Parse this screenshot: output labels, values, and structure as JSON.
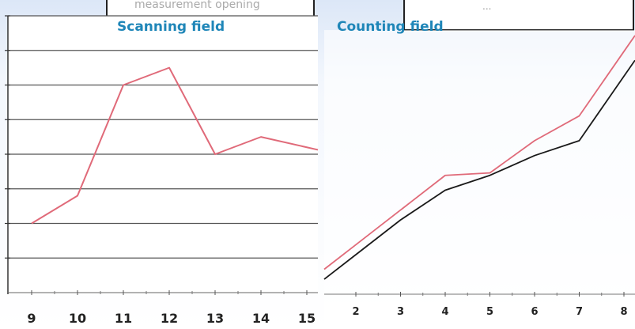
{
  "labels": {
    "left": "Scanning field",
    "right": "Counting field"
  },
  "top_fragments": {
    "left": "measurement opening",
    "right": "..."
  },
  "colors": {
    "red_series": "#e06a79",
    "black_series": "#1a1a1a",
    "label_blue": "#1f86b8",
    "background_tint": "#eaf1fb"
  },
  "chart_data": [
    {
      "type": "line",
      "x": [
        "9",
        "10",
        "11",
        "12",
        "13",
        "14",
        "15"
      ],
      "series": [
        {
          "color": "#e06a79",
          "values": [
            1.0,
            1.8,
            5.0,
            5.5,
            3.0,
            3.5,
            3.2
          ]
        }
      ],
      "ylim": [
        -1,
        7
      ],
      "grid": true
    },
    {
      "type": "line",
      "x": [
        "2",
        "3",
        "4",
        "5",
        "6",
        "7",
        "8"
      ],
      "series": [
        {
          "color": "#e06a79",
          "values": [
            1.7,
            2.4,
            3.1,
            3.15,
            3.8,
            4.3,
            5.6
          ]
        },
        {
          "color": "#1a1a1a",
          "values": [
            1.5,
            2.2,
            2.8,
            3.1,
            3.5,
            3.8,
            5.1
          ]
        }
      ],
      "ylim": [
        0,
        6
      ],
      "grid": false
    }
  ]
}
